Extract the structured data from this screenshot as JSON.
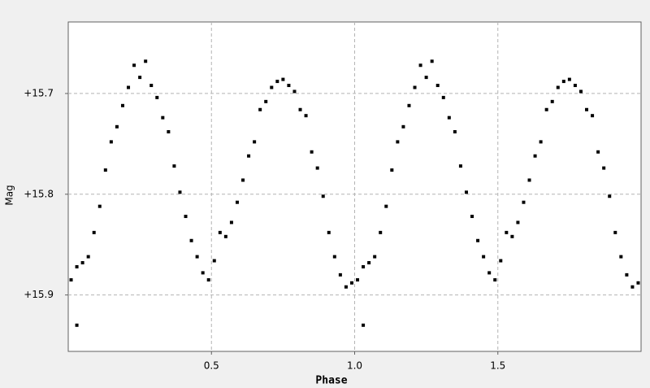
{
  "chart_data": {
    "type": "scatter",
    "x_label": "Phase",
    "y_label": "Mag",
    "xlim": [
      0,
      2
    ],
    "ylim": [
      15.956,
      15.629
    ],
    "xticks": [
      0.5,
      {
        "value": 1,
        "label": "1.0"
      },
      1.5
    ],
    "yticks": [
      {
        "value": 15.7,
        "label": "+15.7"
      },
      {
        "value": 15.8,
        "label": "+15.8"
      },
      {
        "value": 15.9,
        "label": "+15.9"
      }
    ],
    "grid": true,
    "color": "#000000",
    "x": [
      0.01,
      0.03,
      0.05,
      0.07,
      0.09,
      0.11,
      0.13,
      0.15,
      0.17,
      0.19,
      0.21,
      0.23,
      0.25,
      0.27,
      0.29,
      0.31,
      0.33,
      0.35,
      0.37,
      0.39,
      0.41,
      0.43,
      0.45,
      0.47,
      0.49,
      0.51,
      0.53,
      0.55,
      0.57,
      0.59,
      0.61,
      0.63,
      0.65,
      0.67,
      0.69,
      0.71,
      0.73,
      0.75,
      0.77,
      0.79,
      0.81,
      0.83,
      0.85,
      0.87,
      0.89,
      0.91,
      0.93,
      0.95,
      0.97,
      0.99,
      1.01,
      1.03,
      1.05,
      1.07,
      1.09,
      1.11,
      1.13,
      1.15,
      1.17,
      1.19,
      1.21,
      1.23,
      1.25,
      1.27,
      1.29,
      1.31,
      1.33,
      1.35,
      1.37,
      1.39,
      1.41,
      1.43,
      1.45,
      1.47,
      1.49,
      1.51,
      1.53,
      1.55,
      1.57,
      1.59,
      1.61,
      1.63,
      1.65,
      1.67,
      1.69,
      1.71,
      1.73,
      1.75,
      1.77,
      1.79,
      1.81,
      1.83,
      1.85,
      1.87,
      1.89,
      1.91,
      1.93,
      1.95,
      1.97,
      1.99,
      0.03,
      1.03
    ],
    "values": [
      15.885,
      15.872,
      15.868,
      15.862,
      15.838,
      15.812,
      15.776,
      15.748,
      15.733,
      15.712,
      15.694,
      15.672,
      15.684,
      15.668,
      15.692,
      15.704,
      15.724,
      15.738,
      15.772,
      15.798,
      15.822,
      15.846,
      15.862,
      15.878,
      15.885,
      15.866,
      15.838,
      15.842,
      15.828,
      15.808,
      15.786,
      15.762,
      15.748,
      15.716,
      15.708,
      15.694,
      15.688,
      15.686,
      15.692,
      15.698,
      15.716,
      15.722,
      15.758,
      15.774,
      15.802,
      15.838,
      15.862,
      15.88,
      15.892,
      15.888,
      15.885,
      15.872,
      15.868,
      15.862,
      15.838,
      15.812,
      15.776,
      15.748,
      15.733,
      15.712,
      15.694,
      15.672,
      15.684,
      15.668,
      15.692,
      15.704,
      15.724,
      15.738,
      15.772,
      15.798,
      15.822,
      15.846,
      15.862,
      15.878,
      15.885,
      15.866,
      15.838,
      15.842,
      15.828,
      15.808,
      15.786,
      15.762,
      15.748,
      15.716,
      15.708,
      15.694,
      15.688,
      15.686,
      15.692,
      15.698,
      15.716,
      15.722,
      15.758,
      15.774,
      15.802,
      15.838,
      15.862,
      15.88,
      15.892,
      15.888,
      15.93,
      15.93
    ]
  }
}
